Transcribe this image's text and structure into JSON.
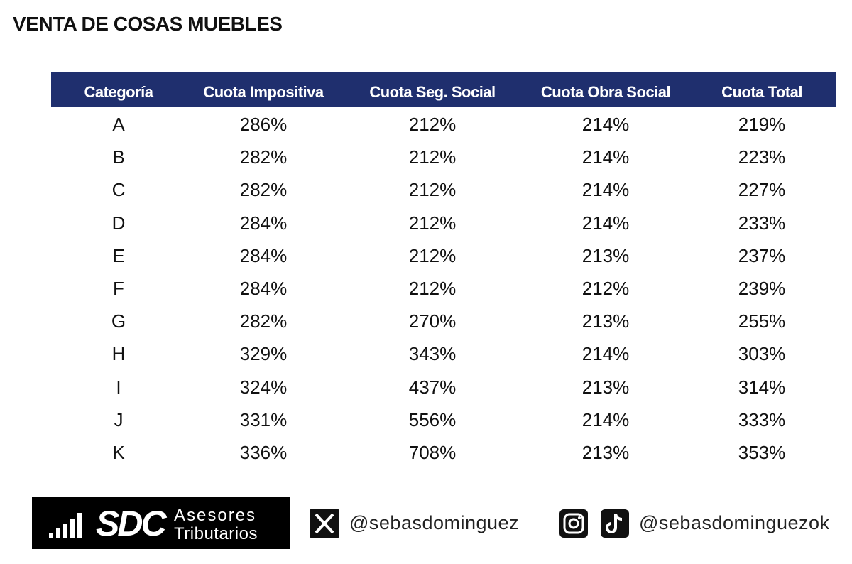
{
  "title": "VENTA DE COSAS MUEBLES",
  "table": {
    "header": [
      "Categoría",
      "Cuota Impositiva",
      "Cuota Seg. Social",
      "Cuota Obra Social",
      "Cuota Total"
    ],
    "rows": [
      [
        "A",
        "286%",
        "212%",
        "214%",
        "219%"
      ],
      [
        "B",
        "282%",
        "212%",
        "214%",
        "223%"
      ],
      [
        "C",
        "282%",
        "212%",
        "214%",
        "227%"
      ],
      [
        "D",
        "284%",
        "212%",
        "214%",
        "233%"
      ],
      [
        "E",
        "284%",
        "212%",
        "213%",
        "237%"
      ],
      [
        "F",
        "284%",
        "212%",
        "212%",
        "239%"
      ],
      [
        "G",
        "282%",
        "270%",
        "213%",
        "255%"
      ],
      [
        "H",
        "329%",
        "343%",
        "214%",
        "303%"
      ],
      [
        "I",
        "324%",
        "437%",
        "213%",
        "314%"
      ],
      [
        "J",
        "331%",
        "556%",
        "214%",
        "333%"
      ],
      [
        "K",
        "336%",
        "708%",
        "213%",
        "353%"
      ]
    ]
  },
  "footer": {
    "logo": {
      "name": "SDC",
      "line1": "Asesores",
      "line2": "Tributarios"
    },
    "x_handle": "@sebasdominguez",
    "social_handle": "@sebasdominguezok"
  }
}
